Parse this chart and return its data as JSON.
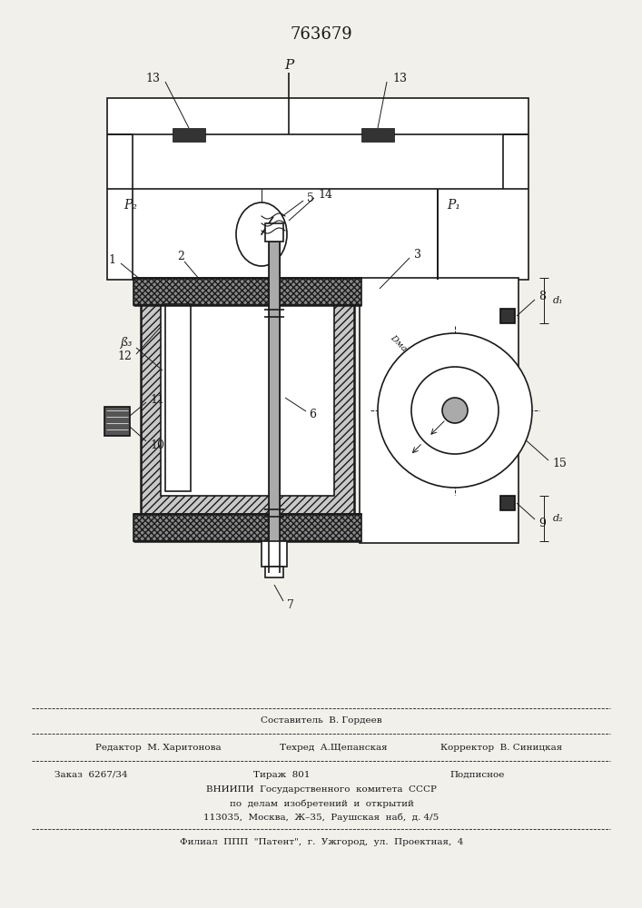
{
  "patent_number": "763679",
  "bg_color": "#f2f0eb",
  "lc": "#1a1a1a",
  "fig_width": 7.07,
  "fig_height": 10.0,
  "footer": {
    "l1": "Составитель  В. Гордеев",
    "l2a": "Редактор  М. Харитонова",
    "l2b": "Техред  А.Щепанская",
    "l2c": "Корректор  В. Синицкая",
    "l3a": "Заказ  6267/34",
    "l3b": "Тираж  801",
    "l3c": "Подписное",
    "l4": "ВНИИПИ  Государственного  комитета  СССР",
    "l5": "по  делам  изобретений  и  открытий",
    "l6": "113035,  Москва,  Ж–35,  Раушская  наб,  д. 4/5",
    "l7": "Филиал  ППП  \"Патент\",  г.  Ужгород,  ул.  Проектная,  4"
  }
}
